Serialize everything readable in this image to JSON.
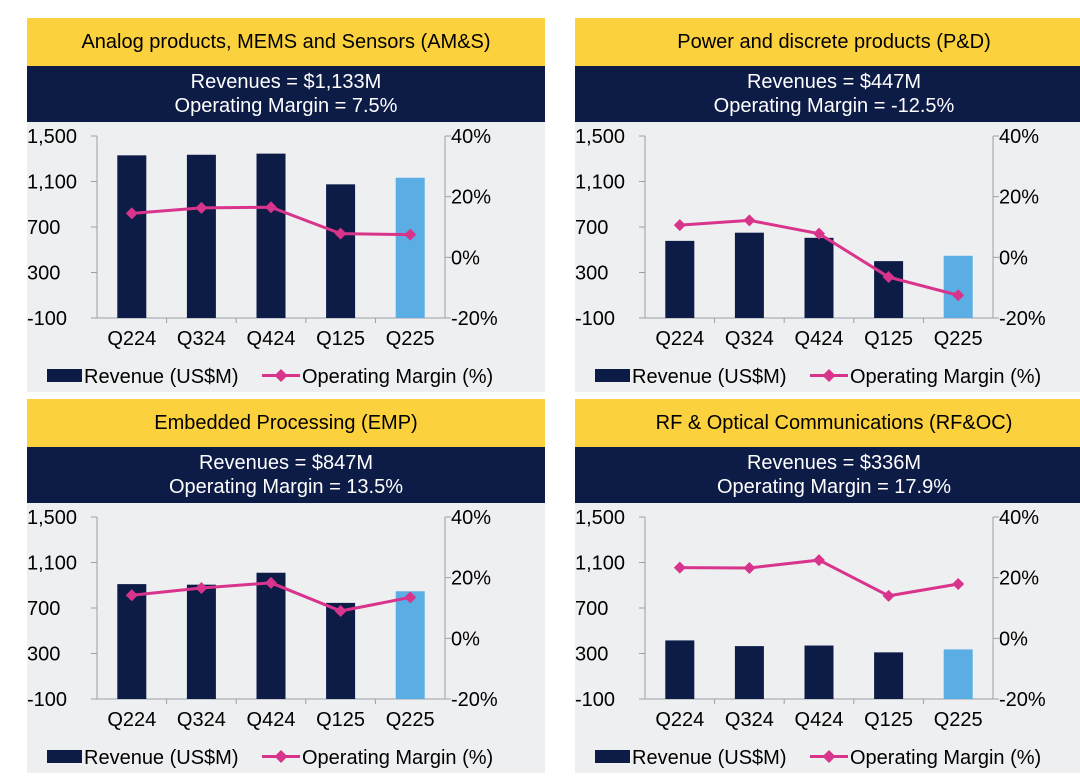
{
  "colors": {
    "title_bg": "#fbd13e",
    "header_bg": "#0d1b47",
    "bar_navy": "#0d1b47",
    "bar_highlight": "#5aaee4",
    "margin_line": "#d9348c",
    "panel_bg": "#eeeff1"
  },
  "chart_data": [
    {
      "type": "bar",
      "title": "Analog products, MEMS and Sensors (AM&S)",
      "revenue_text": "Revenues = $1,133M",
      "margin_text": "Operating Margin = 7.5%",
      "categories": [
        "Q224",
        "Q324",
        "Q424",
        "Q125",
        "Q225"
      ],
      "series": [
        {
          "name": "Revenue (US$M)",
          "axis": "left",
          "type": "bar",
          "values": [
            1330,
            1335,
            1345,
            1075,
            1133
          ]
        },
        {
          "name": "Operating Margin (%)",
          "axis": "right",
          "type": "line",
          "values": [
            14.5,
            16.3,
            16.5,
            7.8,
            7.5
          ]
        }
      ],
      "y_left": {
        "min": -100,
        "max": 1500,
        "ticks": [
          1500,
          1100,
          700,
          300,
          -100
        ],
        "tick_labels": [
          "1,500",
          "1,100",
          "700",
          "300",
          "-100"
        ]
      },
      "y_right": {
        "min": -20,
        "max": 40,
        "ticks": [
          40,
          20,
          0,
          -20
        ],
        "tick_labels": [
          "40%",
          "20%",
          "0%",
          "-20%"
        ]
      },
      "highlight_index": 4,
      "legend": [
        "Revenue (US$M)",
        "Operating Margin (%)"
      ],
      "legend_position": "bottom"
    },
    {
      "type": "bar",
      "title": "Power and discrete products (P&D)",
      "revenue_text": "Revenues = $447M",
      "margin_text": "Operating Margin = -12.5%",
      "categories": [
        "Q224",
        "Q324",
        "Q424",
        "Q125",
        "Q225"
      ],
      "series": [
        {
          "name": "Revenue (US$M)",
          "axis": "left",
          "type": "bar",
          "values": [
            578,
            650,
            605,
            400,
            447
          ]
        },
        {
          "name": "Operating Margin (%)",
          "axis": "right",
          "type": "line",
          "values": [
            10.6,
            12.2,
            7.8,
            -6.5,
            -12.5
          ]
        }
      ],
      "y_left": {
        "min": -100,
        "max": 1500,
        "ticks": [
          1500,
          1100,
          700,
          300,
          -100
        ],
        "tick_labels": [
          "1,500",
          "1,100",
          "700",
          "300",
          "-100"
        ]
      },
      "y_right": {
        "min": -20,
        "max": 40,
        "ticks": [
          40,
          20,
          0,
          -20
        ],
        "tick_labels": [
          "40%",
          "20%",
          "0%",
          "-20%"
        ]
      },
      "highlight_index": 4,
      "legend": [
        "Revenue (US$M)",
        "Operating Margin (%)"
      ],
      "legend_position": "bottom"
    },
    {
      "type": "bar",
      "title": "Embedded Processing (EMP)",
      "revenue_text": "Revenues = $847M",
      "margin_text": "Operating Margin = 13.5%",
      "categories": [
        "Q224",
        "Q324",
        "Q424",
        "Q125",
        "Q225"
      ],
      "series": [
        {
          "name": "Revenue (US$M)",
          "axis": "left",
          "type": "bar",
          "values": [
            910,
            905,
            1010,
            745,
            847
          ]
        },
        {
          "name": "Operating Margin (%)",
          "axis": "right",
          "type": "line",
          "values": [
            14.2,
            16.6,
            18.3,
            9.0,
            13.5
          ]
        }
      ],
      "y_left": {
        "min": -100,
        "max": 1500,
        "ticks": [
          1500,
          1100,
          700,
          300,
          -100
        ],
        "tick_labels": [
          "1,500",
          "1,100",
          "700",
          "300",
          "-100"
        ]
      },
      "y_right": {
        "min": -20,
        "max": 40,
        "ticks": [
          40,
          20,
          0,
          -20
        ],
        "tick_labels": [
          "40%",
          "20%",
          "0%",
          "-20%"
        ]
      },
      "highlight_index": 4,
      "legend": [
        "Revenue (US$M)",
        "Operating Margin (%)"
      ],
      "legend_position": "bottom"
    },
    {
      "type": "bar",
      "title": "RF & Optical Communications (RF&OC)",
      "revenue_text": "Revenues = $336M",
      "margin_text": "Operating Margin = 17.9%",
      "categories": [
        "Q224",
        "Q324",
        "Q424",
        "Q125",
        "Q225"
      ],
      "series": [
        {
          "name": "Revenue (US$M)",
          "axis": "left",
          "type": "bar",
          "values": [
            415,
            365,
            370,
            310,
            336
          ]
        },
        {
          "name": "Operating Margin (%)",
          "axis": "right",
          "type": "line",
          "values": [
            23.3,
            23.2,
            25.8,
            14.0,
            17.9
          ]
        }
      ],
      "y_left": {
        "min": -100,
        "max": 1500,
        "ticks": [
          1500,
          1100,
          700,
          300,
          -100
        ],
        "tick_labels": [
          "1,500",
          "1,100",
          "700",
          "300",
          "-100"
        ]
      },
      "y_right": {
        "min": -20,
        "max": 40,
        "ticks": [
          40,
          20,
          0,
          -20
        ],
        "tick_labels": [
          "40%",
          "20%",
          "0%",
          "-20%"
        ]
      },
      "highlight_index": 4,
      "legend": [
        "Revenue (US$M)",
        "Operating Margin (%)"
      ],
      "legend_position": "bottom"
    }
  ]
}
